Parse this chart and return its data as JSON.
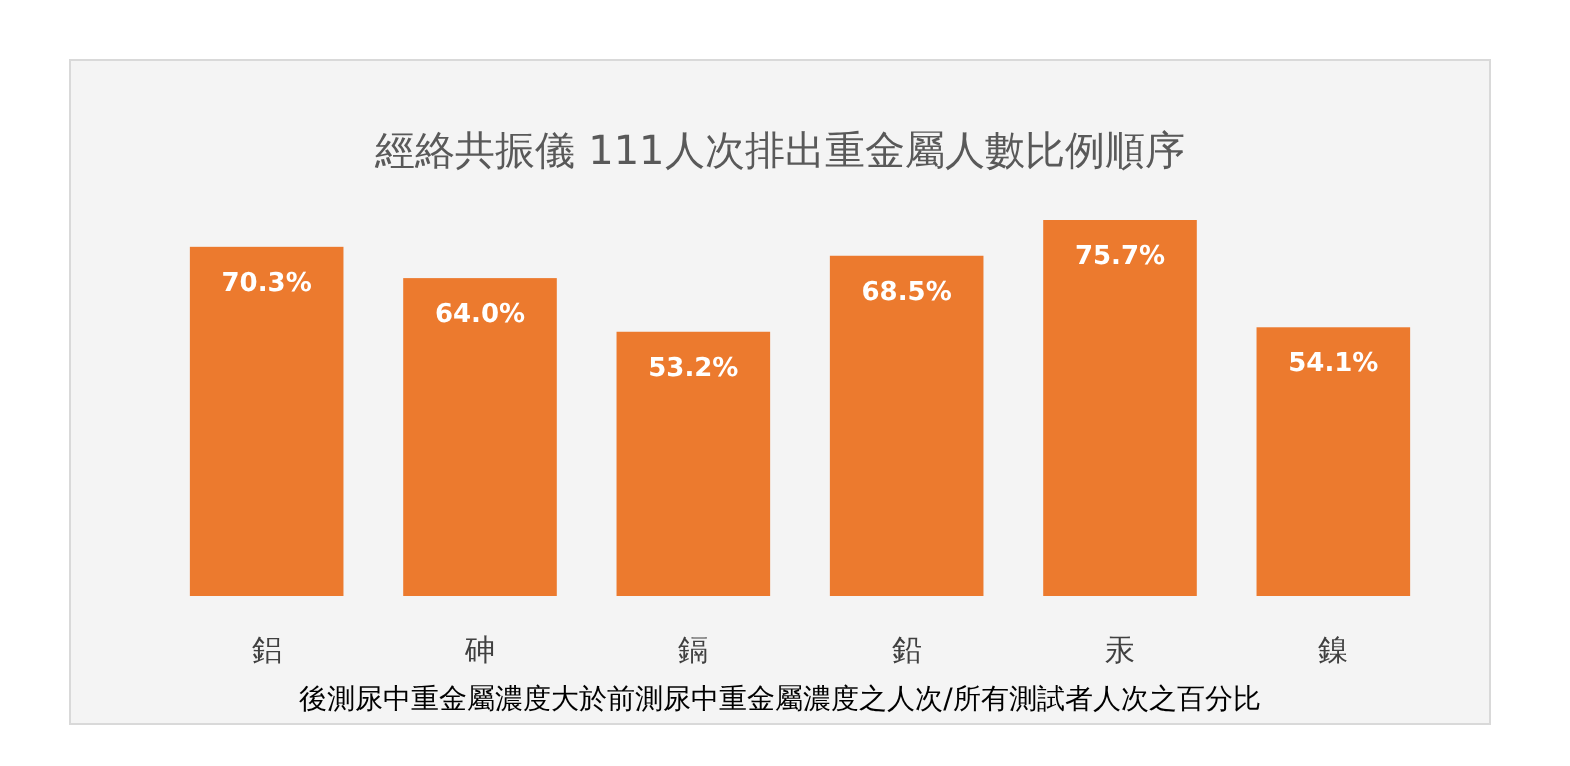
{
  "chart_data": {
    "type": "bar",
    "title": "經絡共振儀 111人次排出重金屬人數比例順序",
    "xlabel": "後測尿中重金屬濃度大於前測尿中重金屬濃度之人次/所有測試者人次之百分比",
    "categories": [
      "鋁",
      "砷",
      "鎘",
      "鉛",
      "汞",
      "鎳"
    ],
    "values": [
      70.3,
      64.0,
      53.2,
      68.5,
      75.7,
      54.1
    ],
    "value_labels": [
      "70.3%",
      "64.0%",
      "53.2%",
      "68.5%",
      "75.7%",
      "54.1%"
    ],
    "color": "#ec7a2e"
  }
}
